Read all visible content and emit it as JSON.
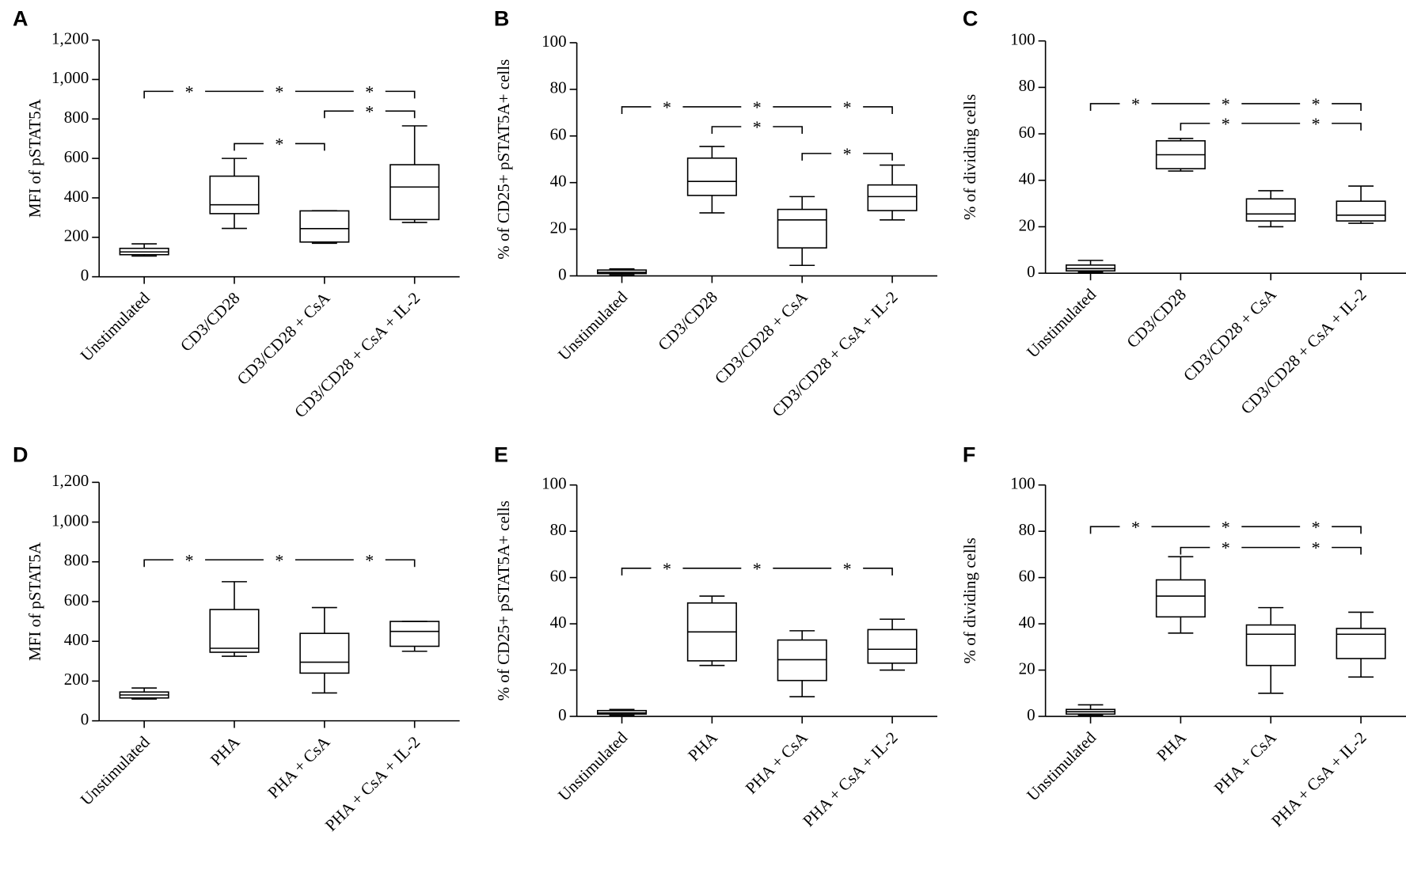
{
  "chart_data": [
    {
      "type": "box",
      "panel": "A",
      "ylabel": "MFI of pSTAT5A",
      "categories": [
        "Unstimulated",
        "CD3/CD28",
        "CD3/CD28 + CsA",
        "CD3/CD28 + CsA + IL-2"
      ],
      "min": [
        105,
        245,
        170,
        275
      ],
      "q1": [
        112,
        320,
        176,
        290
      ],
      "median": [
        126,
        365,
        244,
        455
      ],
      "q3": [
        144,
        510,
        334,
        568
      ],
      "max": [
        167,
        600,
        335,
        765
      ],
      "ylim": [
        0,
        1200
      ],
      "yticks": [
        0,
        200,
        400,
        600,
        800,
        {
          "value": 1000,
          "label": "1,000"
        },
        {
          "value": 1200,
          "label": "1,200"
        }
      ],
      "brackets": [
        {
          "from": 0,
          "to": 3,
          "y": 940,
          "labels": [
            "*",
            "*",
            "*"
          ]
        },
        {
          "from": 2,
          "to": 3,
          "y": 840,
          "labels": [
            "*"
          ]
        },
        {
          "from": 1,
          "to": 2,
          "y": 675,
          "labels": [
            "*"
          ]
        }
      ]
    },
    {
      "type": "box",
      "panel": "B",
      "ylabel": "% of CD25+ pSTAT5A+ cells",
      "categories": [
        "Unstimulated",
        "CD3/CD28",
        "CD3/CD28 + CsA",
        "CD3/CD28 + CsA + IL-2"
      ],
      "min": [
        0.5,
        27,
        4.5,
        24
      ],
      "q1": [
        1,
        34.5,
        12,
        28
      ],
      "median": [
        1.5,
        40.5,
        24,
        34
      ],
      "q3": [
        2.5,
        50.5,
        28.5,
        39
      ],
      "max": [
        3,
        55.5,
        34,
        47.5
      ],
      "ylim": [
        0,
        100
      ],
      "yticks": [
        0,
        20,
        40,
        60,
        80,
        100
      ],
      "brackets": [
        {
          "from": 0,
          "to": 3,
          "y": 72.5,
          "labels": [
            "*",
            "*",
            "*"
          ]
        },
        {
          "from": 1,
          "to": 2,
          "y": 64,
          "labels": [
            "*"
          ]
        },
        {
          "from": 2,
          "to": 3,
          "y": 52.5,
          "labels": [
            "*"
          ]
        }
      ]
    },
    {
      "type": "box",
      "panel": "C",
      "ylabel": "% of dividing cells",
      "categories": [
        "Unstimulated",
        "CD3/CD28",
        "CD3/CD28 + CsA",
        "CD3/CD28 + CsA + IL-2"
      ],
      "min": [
        0.5,
        44,
        20,
        21.5
      ],
      "q1": [
        1,
        45,
        22.5,
        22.5
      ],
      "median": [
        2,
        51,
        25.5,
        25
      ],
      "q3": [
        3.5,
        57,
        32,
        31
      ],
      "max": [
        5.5,
        58,
        35.5,
        37.5
      ],
      "ylim": [
        0,
        100
      ],
      "yticks": [
        0,
        20,
        40,
        60,
        80,
        100
      ],
      "brackets": [
        {
          "from": 0,
          "to": 3,
          "y": 73,
          "labels": [
            "*",
            "*",
            "*"
          ]
        },
        {
          "from": 1,
          "to": 3,
          "y": 64.5,
          "labels": [
            "*",
            "*"
          ]
        }
      ]
    },
    {
      "type": "box",
      "panel": "D",
      "ylabel": "MFI of pSTAT5A",
      "categories": [
        "Unstimulated",
        "PHA",
        "PHA + CsA",
        "PHA + CsA + IL-2"
      ],
      "min": [
        110,
        325,
        140,
        350
      ],
      "q1": [
        115,
        345,
        240,
        375
      ],
      "median": [
        130,
        365,
        295,
        450
      ],
      "q3": [
        145,
        560,
        440,
        500
      ],
      "max": [
        165,
        700,
        570,
        500
      ],
      "ylim": [
        0,
        1200
      ],
      "yticks": [
        0,
        200,
        400,
        600,
        800,
        {
          "value": 1000,
          "label": "1,000"
        },
        {
          "value": 1200,
          "label": "1,200"
        }
      ],
      "brackets": [
        {
          "from": 0,
          "to": 3,
          "y": 810,
          "labels": [
            "*",
            "*",
            "*"
          ]
        }
      ]
    },
    {
      "type": "box",
      "panel": "E",
      "ylabel": "% of CD25+ pSTAT5A+ cells",
      "categories": [
        "Unstimulated",
        "PHA",
        "PHA + CsA",
        "PHA + CsA + IL-2"
      ],
      "min": [
        0.5,
        22,
        8.5,
        20
      ],
      "q1": [
        1,
        24,
        15.5,
        23
      ],
      "median": [
        1.5,
        36.5,
        24.5,
        29
      ],
      "q3": [
        2.5,
        49,
        33,
        37.5
      ],
      "max": [
        3,
        52,
        37,
        42
      ],
      "ylim": [
        0,
        100
      ],
      "yticks": [
        0,
        20,
        40,
        60,
        80,
        100
      ],
      "brackets": [
        {
          "from": 0,
          "to": 3,
          "y": 64,
          "labels": [
            "*",
            "*",
            "*"
          ]
        }
      ]
    },
    {
      "type": "box",
      "panel": "F",
      "ylabel": "% of dividing cells",
      "categories": [
        "Unstimulated",
        "PHA",
        "PHA + CsA",
        "PHA + CsA + IL-2"
      ],
      "min": [
        0.5,
        36,
        10,
        17
      ],
      "q1": [
        1,
        43,
        22,
        25
      ],
      "median": [
        2,
        52,
        35.5,
        35.5
      ],
      "q3": [
        3,
        59,
        39.5,
        38
      ],
      "max": [
        5,
        69,
        47,
        45
      ],
      "ylim": [
        0,
        100
      ],
      "yticks": [
        0,
        20,
        40,
        60,
        80,
        100
      ],
      "brackets": [
        {
          "from": 0,
          "to": 3,
          "y": 82,
          "labels": [
            "*",
            "*",
            "*"
          ]
        },
        {
          "from": 1,
          "to": 3,
          "y": 73,
          "labels": [
            "*",
            "*"
          ]
        }
      ]
    }
  ]
}
